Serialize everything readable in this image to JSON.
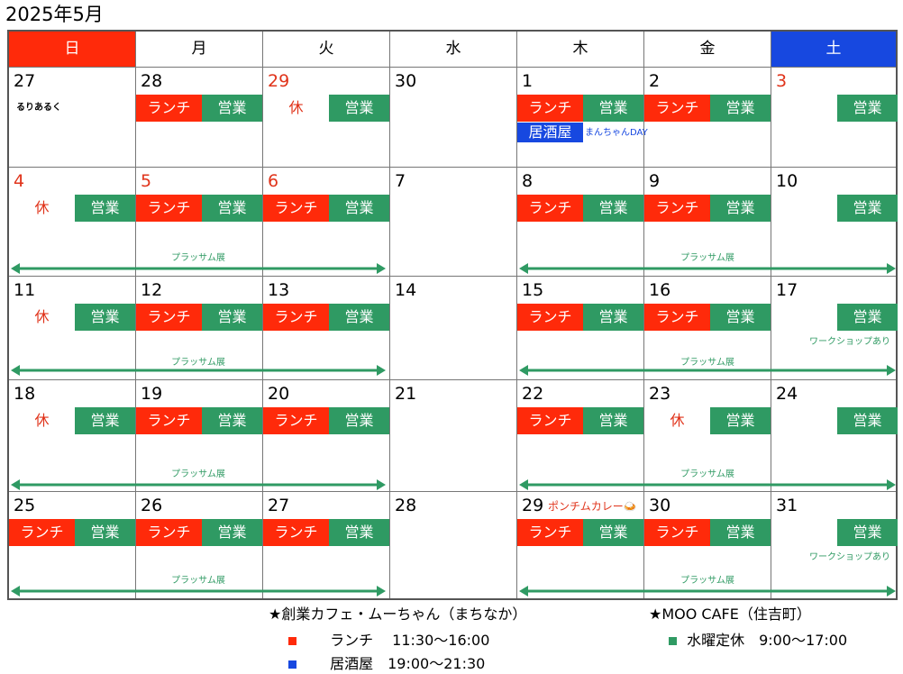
{
  "title": "2025年5月",
  "weekdays": [
    "日",
    "月",
    "火",
    "水",
    "木",
    "金",
    "土"
  ],
  "colors": {
    "sunday": "#ff2a0a",
    "saturday": "#1748e0",
    "lunch": "#ff2a0a",
    "eigyo": "#2f9a63",
    "izakaya": "#1748e0",
    "holiday_text": "#e0331a"
  },
  "labels": {
    "lunch": "ランチ",
    "eigyo": "営業",
    "izakaya": "居酒屋",
    "holiday": "休"
  },
  "weeks": [
    [
      {
        "date": "27",
        "red": false,
        "note": "るりあるく",
        "noteColor": "black"
      },
      {
        "date": "28",
        "lunch": true,
        "eigyo": true
      },
      {
        "date": "29",
        "red": true,
        "holiday": true,
        "eigyo": true
      },
      {
        "date": "30"
      },
      {
        "date": "1",
        "lunch": true,
        "eigyo": true,
        "izakaya": true,
        "note": "まんちゃんDAY",
        "noteColor": "blue"
      },
      {
        "date": "2",
        "lunch": true,
        "eigyo": true
      },
      {
        "date": "3",
        "red": true,
        "eigyo": true
      }
    ],
    [
      {
        "date": "4",
        "red": true,
        "holiday": true,
        "eigyo": true
      },
      {
        "date": "5",
        "red": true,
        "lunch": true,
        "eigyo": true
      },
      {
        "date": "6",
        "red": true,
        "lunch": true,
        "eigyo": true
      },
      {
        "date": "7"
      },
      {
        "date": "8",
        "lunch": true,
        "eigyo": true
      },
      {
        "date": "9",
        "lunch": true,
        "eigyo": true
      },
      {
        "date": "10",
        "eigyo": true
      }
    ],
    [
      {
        "date": "11",
        "holiday": true,
        "eigyo": true
      },
      {
        "date": "12",
        "lunch": true,
        "eigyo": true
      },
      {
        "date": "13",
        "lunch": true,
        "eigyo": true
      },
      {
        "date": "14"
      },
      {
        "date": "15",
        "lunch": true,
        "eigyo": true
      },
      {
        "date": "16",
        "lunch": true,
        "eigyo": true
      },
      {
        "date": "17",
        "eigyo": true,
        "note": "ワークショップあり",
        "noteColor": "green"
      }
    ],
    [
      {
        "date": "18",
        "holiday": true,
        "eigyo": true
      },
      {
        "date": "19",
        "lunch": true,
        "eigyo": true
      },
      {
        "date": "20",
        "lunch": true,
        "eigyo": true
      },
      {
        "date": "21"
      },
      {
        "date": "22",
        "lunch": true,
        "eigyo": true
      },
      {
        "date": "23",
        "holiday": true,
        "eigyo": true
      },
      {
        "date": "24",
        "eigyo": true
      }
    ],
    [
      {
        "date": "25",
        "lunch": true,
        "eigyo": true
      },
      {
        "date": "26",
        "lunch": true,
        "eigyo": true
      },
      {
        "date": "27",
        "lunch": true,
        "eigyo": true
      },
      {
        "date": "28"
      },
      {
        "date": "29",
        "lunch": true,
        "eigyo": true,
        "inlineNote": "ポンチムカレー🍛"
      },
      {
        "date": "30",
        "lunch": true,
        "eigyo": true
      },
      {
        "date": "31",
        "eigyo": true,
        "note": "ワークショップあり",
        "noteColor": "green"
      }
    ]
  ],
  "event_label": "プラッサム展",
  "legend": {
    "left_title": "★創業カフェ・ムーちゃん（まちなか）",
    "lunch_line": "ランチ　 11:30～16:00",
    "izakaya_line": "居酒屋　19:00～21:30",
    "right_title": "★MOO CAFE（住吉町）",
    "eigyo_line": "水曜定休　9:00～17:00"
  }
}
